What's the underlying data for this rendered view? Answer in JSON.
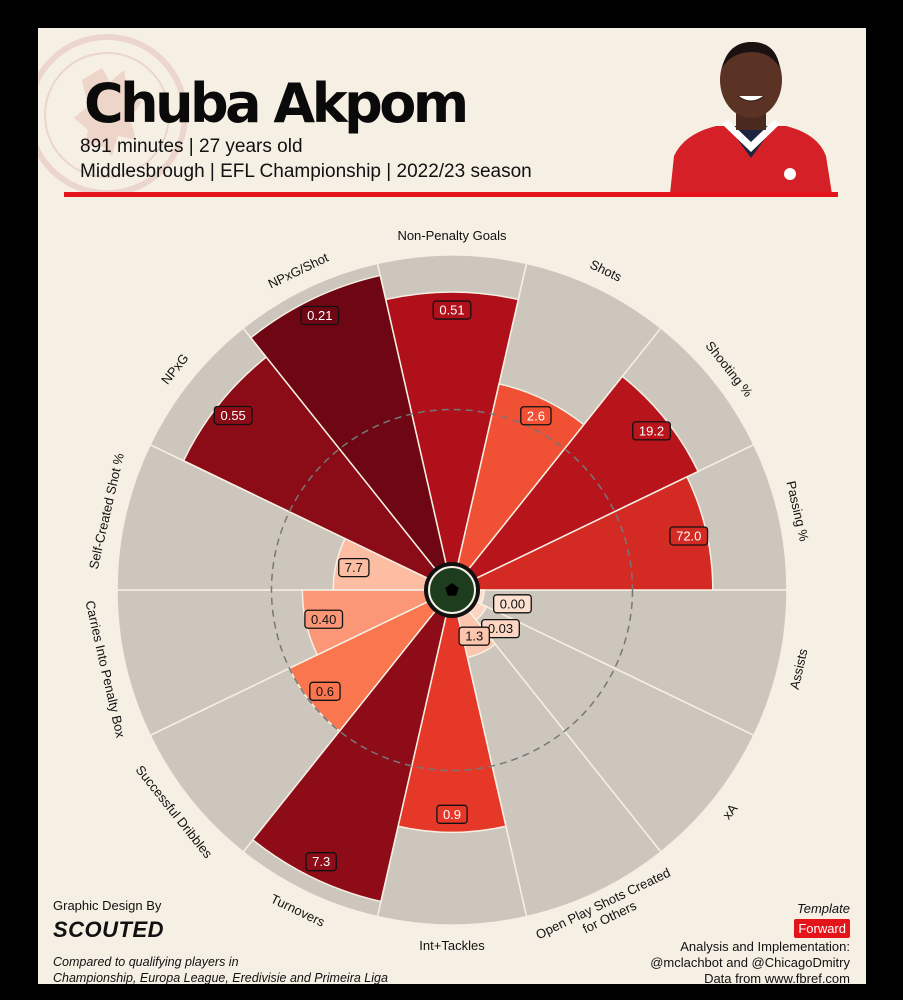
{
  "header": {
    "player_name": "Chuba Akpom",
    "subtitle_1": "891 minutes | 27 years old",
    "subtitle_2": "Middlesbrough | EFL Championship | 2022/23 season"
  },
  "footer": {
    "credit_label": "Graphic Design By",
    "credit_logo": "SCOUTED",
    "compared_line_1": "Compared to qualifying players in",
    "compared_line_2": "Championship, Europa League, Eredivisie and Primeira Liga",
    "template_label": "Template",
    "template_value": "Forward",
    "analysis_line_1": "Analysis and Implementation:",
    "analysis_line_2": "@mclachbot and @ChicagoDmitry",
    "data_source": "Data from www.fbref.com"
  },
  "icons": {
    "crest": "club-crest-icon",
    "ball": "football-icon",
    "photo": "player-photo"
  },
  "colors": {
    "background": "#f6f0e4",
    "accent": "#e4141b",
    "slice_background": "#ccc6bd"
  },
  "chart_data": {
    "type": "radar",
    "scale": "percentile",
    "range": [
      0,
      100
    ],
    "reference_circle": 50,
    "metrics": [
      {
        "label": "Non-Penalty Goals",
        "value": "0.51",
        "percentile": 88,
        "color": "#b0101a"
      },
      {
        "label": "Shots",
        "value": "2.6",
        "percentile": 60,
        "color": "#f05033"
      },
      {
        "label": "Shooting %",
        "value": "19.2",
        "percentile": 80,
        "color": "#b7151b"
      },
      {
        "label": "Passing %",
        "value": "72.0",
        "percentile": 76,
        "color": "#d42a24"
      },
      {
        "label": "Assists",
        "value": "0.00",
        "percentile": 2,
        "color": "#fde0d0"
      },
      {
        "label": "xA",
        "value": "0.03",
        "percentile": 4,
        "color": "#fcd5c3"
      },
      {
        "label": "Open Play Shots Created for Others",
        "value": "1.3",
        "percentile": 14,
        "color": "#fcc6ae"
      },
      {
        "label": "Int+Tackles",
        "value": "0.9",
        "percentile": 70,
        "color": "#e63828"
      },
      {
        "label": "Turnovers",
        "value": "7.3",
        "percentile": 95,
        "color": "#8e0c17"
      },
      {
        "label": "Successful Dribbles",
        "value": "0.6",
        "percentile": 50,
        "color": "#f9764f"
      },
      {
        "label": "Carries Into Penalty Box",
        "value": "0.40",
        "percentile": 40,
        "color": "#fb9677"
      },
      {
        "label": "Self-Created Shot %",
        "value": "7.7",
        "percentile": 30,
        "color": "#fdbda2"
      },
      {
        "label": "NPxG",
        "value": "0.55",
        "percentile": 88,
        "color": "#8b0b16"
      },
      {
        "label": "NPxG/Shot",
        "value": "0.21",
        "percentile": 96,
        "color": "#6e0713"
      }
    ]
  }
}
